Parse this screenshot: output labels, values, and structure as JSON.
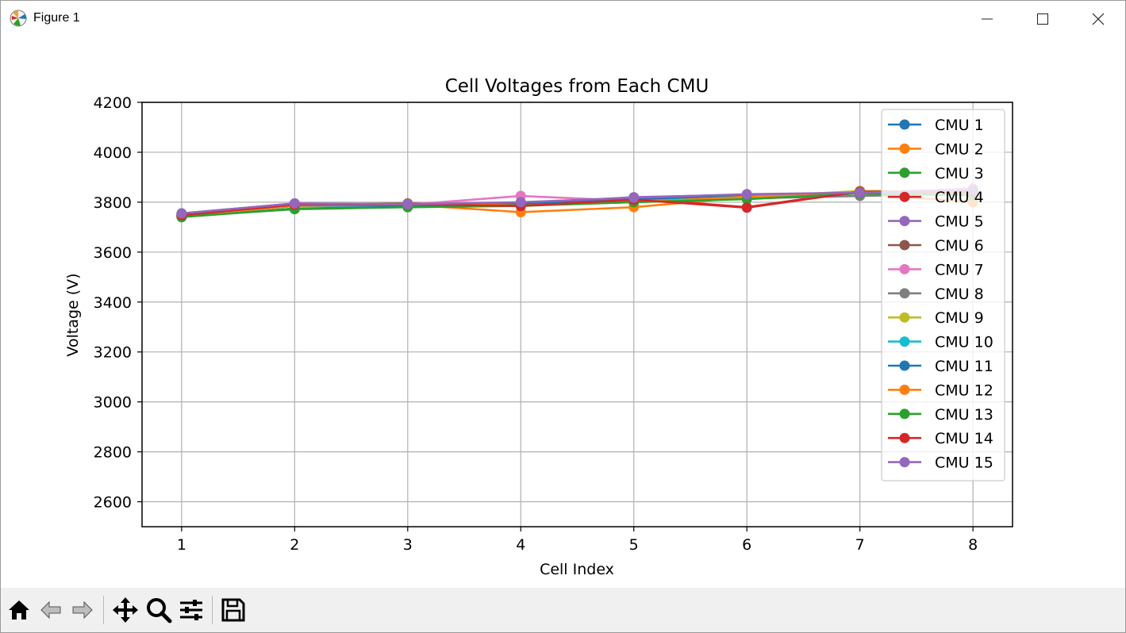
{
  "window": {
    "title": "Figure 1"
  },
  "toolbar": {
    "buttons": [
      {
        "name": "home-icon"
      },
      {
        "name": "back-icon"
      },
      {
        "name": "forward-icon"
      },
      {
        "name": "pan-icon"
      },
      {
        "name": "zoom-icon"
      },
      {
        "name": "configure-subplots-icon"
      },
      {
        "name": "save-icon"
      }
    ]
  },
  "chart_data": {
    "type": "line",
    "title": "Cell Voltages from Each CMU",
    "xlabel": "Cell Index",
    "ylabel": "Voltage (V)",
    "x": [
      1,
      2,
      3,
      4,
      5,
      6,
      7,
      8
    ],
    "xlim": [
      0.65,
      8.35
    ],
    "ylim": [
      2500,
      4200
    ],
    "xticks": [
      1,
      2,
      3,
      4,
      5,
      6,
      7,
      8
    ],
    "yticks": [
      2600,
      2800,
      3000,
      3200,
      3400,
      3600,
      3800,
      4000,
      4200
    ],
    "grid": true,
    "legend": "top-right",
    "marker": "circle",
    "series": [
      {
        "name": "CMU 1",
        "color": "#1f77b4",
        "values": [
          3750,
          3790,
          3785,
          3790,
          3810,
          3825,
          3840,
          3850
        ]
      },
      {
        "name": "CMU 2",
        "color": "#ff7f0e",
        "values": [
          3745,
          3785,
          3790,
          3760,
          3780,
          3820,
          3835,
          3800
        ]
      },
      {
        "name": "CMU 3",
        "color": "#2ca02c",
        "values": [
          3740,
          3775,
          3780,
          3785,
          3800,
          3815,
          3840,
          3830
        ]
      },
      {
        "name": "CMU 4",
        "color": "#d62728",
        "values": [
          3745,
          3790,
          3790,
          3785,
          3815,
          3780,
          3845,
          3840
        ]
      },
      {
        "name": "CMU 5",
        "color": "#9467bd",
        "values": [
          3755,
          3795,
          3790,
          3795,
          3820,
          3830,
          3835,
          3845
        ]
      },
      {
        "name": "CMU 6",
        "color": "#8c564b",
        "values": [
          3745,
          3790,
          3795,
          3790,
          3815,
          3825,
          3840,
          3845
        ]
      },
      {
        "name": "CMU 7",
        "color": "#e377c2",
        "values": [
          3750,
          3795,
          3790,
          3825,
          3805,
          3820,
          3835,
          3855
        ]
      },
      {
        "name": "CMU 8",
        "color": "#7f7f7f",
        "values": [
          3745,
          3785,
          3785,
          3790,
          3805,
          3815,
          3825,
          3835
        ]
      },
      {
        "name": "CMU 9",
        "color": "#bcbd22",
        "values": [
          3748,
          3788,
          3788,
          3790,
          3808,
          3820,
          3845,
          3840
        ]
      },
      {
        "name": "CMU 10",
        "color": "#17becf",
        "values": [
          3750,
          3785,
          3785,
          3792,
          3808,
          3822,
          3838,
          3842
        ]
      },
      {
        "name": "CMU 11",
        "color": "#1f77b4",
        "values": [
          3752,
          3788,
          3785,
          3795,
          3812,
          3828,
          3836,
          3846
        ]
      },
      {
        "name": "CMU 12",
        "color": "#ff7f0e",
        "values": [
          3746,
          3786,
          3792,
          3788,
          3800,
          3822,
          3840,
          3838
        ]
      },
      {
        "name": "CMU 13",
        "color": "#2ca02c",
        "values": [
          3742,
          3772,
          3780,
          3788,
          3800,
          3812,
          3835,
          3828
        ]
      },
      {
        "name": "CMU 14",
        "color": "#d62728",
        "values": [
          3748,
          3790,
          3792,
          3785,
          3810,
          3778,
          3842,
          3842
        ]
      },
      {
        "name": "CMU 15",
        "color": "#9467bd",
        "values": [
          3755,
          3795,
          3792,
          3800,
          3818,
          3832,
          3838,
          3848
        ]
      }
    ]
  }
}
